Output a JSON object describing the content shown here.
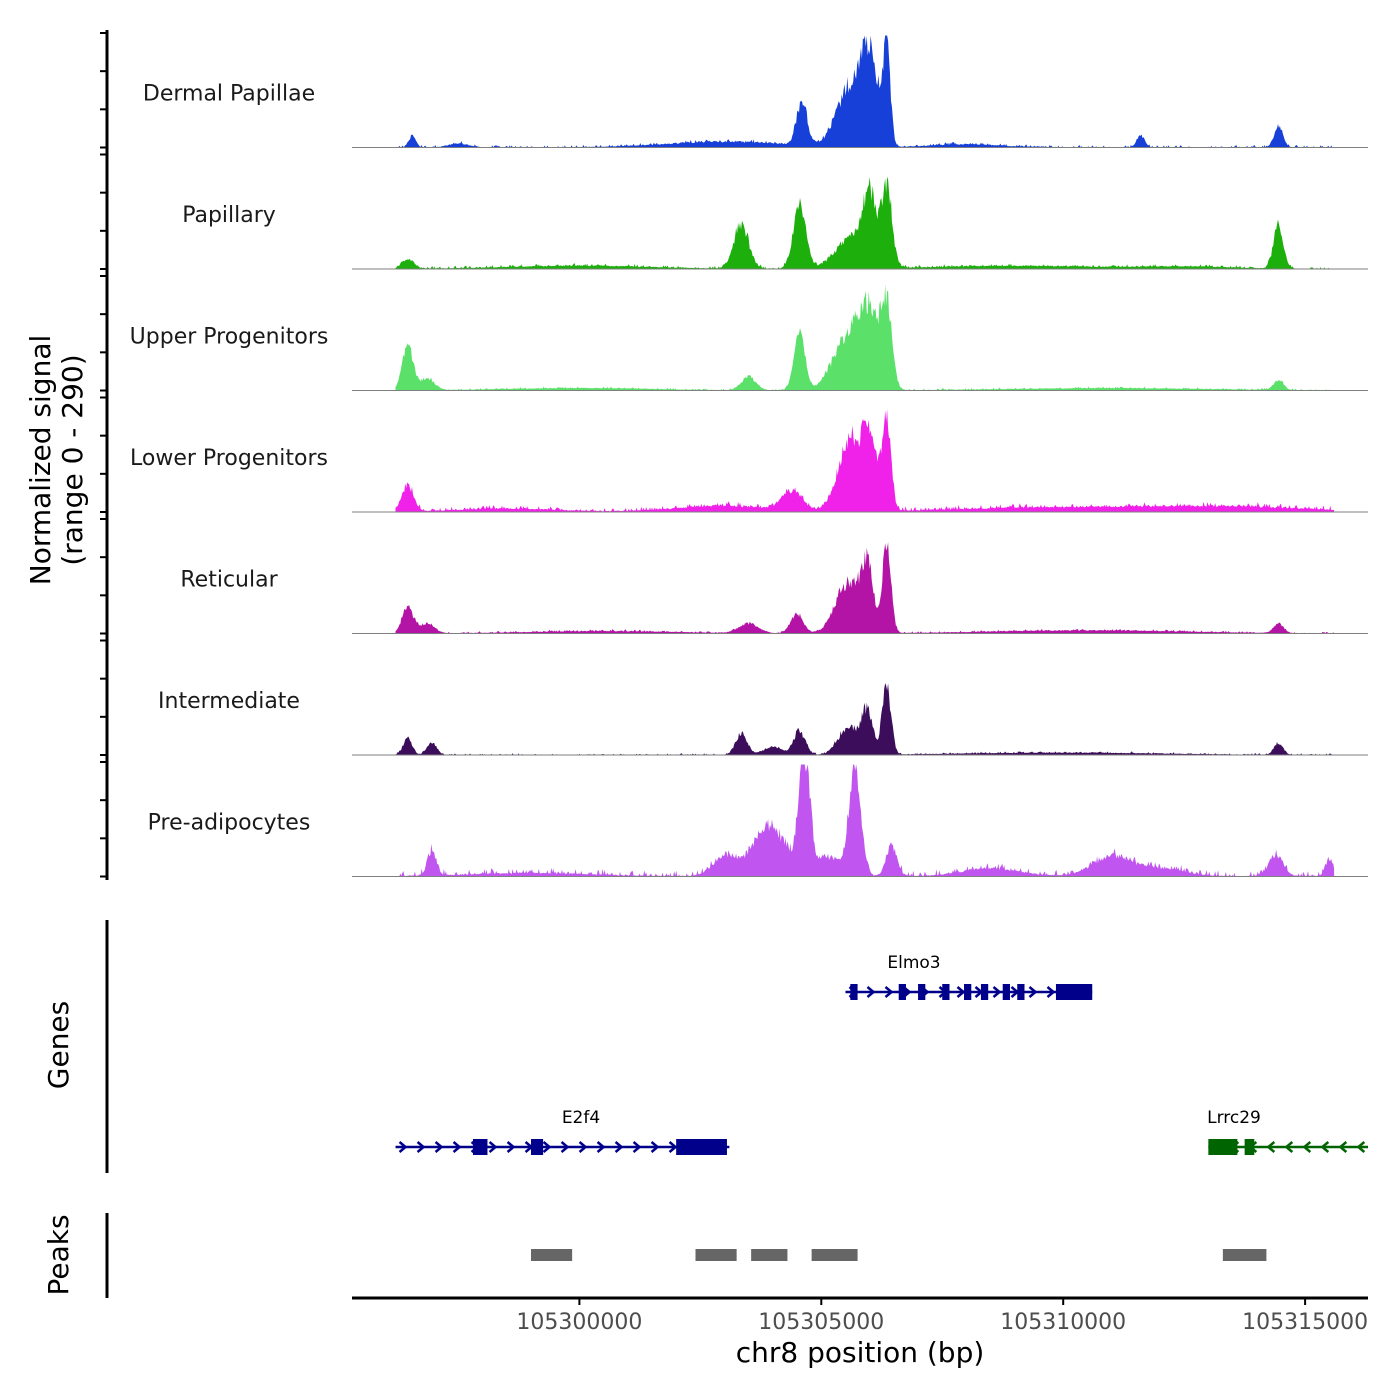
{
  "chart_data": {
    "type": "area",
    "title": "",
    "xlabel": "chr8 position (bp)",
    "ylabel": "Normalized signal",
    "ylabel_range": "(range 0 - 290)",
    "xlim": [
      105295300,
      105316300
    ],
    "ylim": [
      0,
      290
    ],
    "x_ticks": [
      105300000,
      105305000,
      105310000,
      105315000
    ],
    "x_tick_labels": [
      "105300000",
      "105305000",
      "105310000",
      "105315000"
    ],
    "track_start": 105296200,
    "track_end": 105315600,
    "series": [
      {
        "name": "Dermal Papillae",
        "color": "#1740d8",
        "peaks": [
          [
            105296550,
            30,
            70
          ],
          [
            105304600,
            110,
            110
          ],
          [
            105305600,
            150,
            280
          ],
          [
            105306000,
            215,
            180
          ],
          [
            105306350,
            245,
            75
          ],
          [
            105297500,
            10,
            200
          ],
          [
            105303000,
            15,
            1200
          ],
          [
            105311600,
            30,
            80
          ],
          [
            105314450,
            55,
            90
          ],
          [
            105308000,
            8,
            700
          ]
        ],
        "base": 6
      },
      {
        "name": "Papillary",
        "color": "#1daf0c",
        "peaks": [
          [
            105296450,
            25,
            120
          ],
          [
            105303350,
            115,
            150
          ],
          [
            105304550,
            160,
            130
          ],
          [
            105305700,
            90,
            350
          ],
          [
            105306000,
            150,
            120
          ],
          [
            105306350,
            200,
            110
          ],
          [
            105314450,
            115,
            100
          ],
          [
            105300000,
            8,
            1500
          ],
          [
            105309000,
            8,
            1500
          ],
          [
            105312500,
            6,
            1000
          ]
        ],
        "base": 6
      },
      {
        "name": "Upper Progenitors",
        "color": "#5be06a",
        "peaks": [
          [
            105296450,
            115,
            110
          ],
          [
            105296850,
            30,
            150
          ],
          [
            105303500,
            35,
            150
          ],
          [
            105304550,
            150,
            110
          ],
          [
            105305550,
            140,
            300
          ],
          [
            105306000,
            175,
            200
          ],
          [
            105306350,
            210,
            110
          ],
          [
            105314450,
            25,
            100
          ],
          [
            105300000,
            6,
            1500
          ],
          [
            105311000,
            6,
            2000
          ]
        ],
        "base": 4
      },
      {
        "name": "Lower Progenitors",
        "color": "#f021e8",
        "peaks": [
          [
            105296450,
            65,
            120
          ],
          [
            105304400,
            50,
            200
          ],
          [
            105305600,
            180,
            250
          ],
          [
            105306000,
            160,
            150
          ],
          [
            105306350,
            230,
            90
          ],
          [
            105303000,
            15,
            1000
          ],
          [
            105310000,
            12,
            2000
          ],
          [
            105313500,
            12,
            1500
          ],
          [
            105298500,
            8,
            1000
          ]
        ],
        "base": 10
      },
      {
        "name": "Reticular",
        "color": "#b414a6",
        "peaks": [
          [
            105296450,
            70,
            110
          ],
          [
            105296850,
            25,
            150
          ],
          [
            105303500,
            25,
            200
          ],
          [
            105304500,
            50,
            130
          ],
          [
            105305550,
            130,
            250
          ],
          [
            105305950,
            165,
            120
          ],
          [
            105306350,
            220,
            90
          ],
          [
            105314450,
            25,
            100
          ],
          [
            105300500,
            6,
            1500
          ],
          [
            105310500,
            8,
            2000
          ]
        ],
        "base": 4
      },
      {
        "name": "Intermediate",
        "color": "#3c0d5a",
        "peaks": [
          [
            105296450,
            45,
            90
          ],
          [
            105296950,
            30,
            100
          ],
          [
            105303350,
            55,
            120
          ],
          [
            105304550,
            60,
            120
          ],
          [
            105305550,
            70,
            200
          ],
          [
            105305950,
            110,
            120
          ],
          [
            105306350,
            180,
            90
          ],
          [
            105314450,
            30,
            90
          ],
          [
            105304000,
            20,
            200
          ],
          [
            105310000,
            6,
            2000
          ]
        ],
        "base": 4
      },
      {
        "name": "Pre-adipocytes",
        "color": "#c055f0",
        "peaks": [
          [
            105296950,
            65,
            90
          ],
          [
            105303000,
            45,
            250
          ],
          [
            105303900,
            75,
            250
          ],
          [
            105304000,
            60,
            500
          ],
          [
            105304650,
            290,
            110
          ],
          [
            105305200,
            45,
            300
          ],
          [
            105305700,
            270,
            120
          ],
          [
            105306450,
            80,
            110
          ],
          [
            105308500,
            20,
            600
          ],
          [
            105311000,
            50,
            400
          ],
          [
            105312000,
            20,
            500
          ],
          [
            105314400,
            55,
            150
          ],
          [
            105315500,
            45,
            80
          ],
          [
            105299000,
            8,
            1200
          ]
        ],
        "base": 14
      }
    ],
    "genes": [
      {
        "name": "Elmo3",
        "color": "#00008b",
        "strand": "+",
        "start": 105305500,
        "end": 105310600,
        "exons": [
          [
            105305600,
            105305750
          ],
          [
            105306600,
            105306750
          ],
          [
            105307000,
            105307150
          ],
          [
            105307500,
            105307650
          ],
          [
            105307950,
            105308100
          ],
          [
            105308300,
            105308450
          ],
          [
            105308750,
            105308900
          ],
          [
            105309050,
            105309200
          ],
          [
            105309850,
            105310600
          ]
        ]
      },
      {
        "name": "E2f4",
        "color": "#00008b",
        "strand": "+",
        "start": 105296200,
        "end": 105303100,
        "exons": [
          [
            105297800,
            105298100
          ],
          [
            105299000,
            105299250
          ],
          [
            105302000,
            105303050
          ]
        ]
      },
      {
        "name": "Lrrc29",
        "color": "#006400",
        "strand": "-",
        "start": 105313000,
        "end": 105316300,
        "exons": [
          [
            105313000,
            105313600
          ],
          [
            105313750,
            105313950
          ]
        ]
      }
    ],
    "peak_regions": [
      [
        105299000,
        105299850
      ],
      [
        105302400,
        105303250
      ],
      [
        105303550,
        105304300
      ],
      [
        105304800,
        105305750
      ],
      [
        105313300,
        105314200
      ]
    ],
    "track_titles": [
      "Genes",
      "Peaks"
    ]
  }
}
